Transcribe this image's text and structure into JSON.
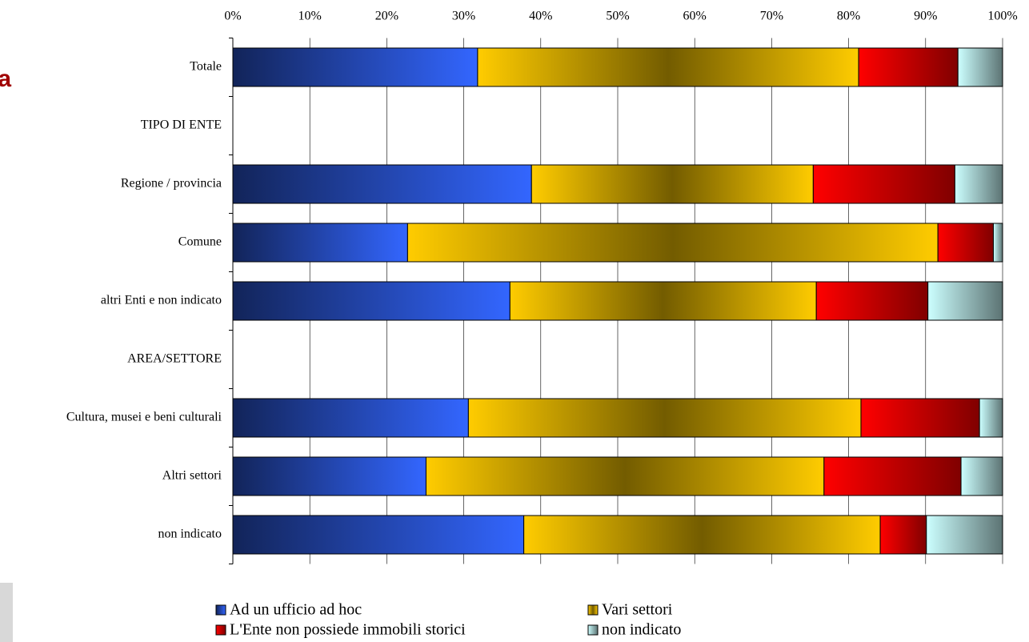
{
  "chart_data": {
    "type": "stacked-bar-horizontal",
    "title": "a",
    "categories": [
      "Totale",
      "TIPO DI ENTE",
      "Regione / provincia",
      "Comune",
      "altri Enti e non indicato",
      "AREA/SETTORE",
      "Cultura, musei e beni culturali",
      "Altri settori",
      "non indicato"
    ],
    "series": [
      {
        "name": "Ad un ufficio ad hoc",
        "color": "#3366ff",
        "values": [
          31.8,
          null,
          38.8,
          22.7,
          36.0,
          null,
          30.6,
          25.1,
          37.8
        ]
      },
      {
        "name": "Vari settori",
        "color": "#ffcc00",
        "values": [
          49.5,
          null,
          36.6,
          68.9,
          39.8,
          null,
          51.0,
          51.7,
          46.3
        ]
      },
      {
        "name": "L'Ente non possiede immobili storici",
        "color": "#ff0000",
        "values": [
          12.9,
          null,
          18.4,
          7.2,
          14.5,
          null,
          15.4,
          17.8,
          6.0
        ]
      },
      {
        "name": "non indicato",
        "color": "#ccffff",
        "values": [
          5.8,
          null,
          6.2,
          1.2,
          9.7,
          null,
          3.0,
          5.4,
          9.9
        ]
      }
    ],
    "xlim": [
      0,
      100
    ],
    "xticks": [
      {
        "value": 0,
        "label": "0%"
      },
      {
        "value": 10,
        "label": "10%"
      },
      {
        "value": 20,
        "label": "20%"
      },
      {
        "value": 30,
        "label": "30%"
      },
      {
        "value": 40,
        "label": "40%"
      },
      {
        "value": 50,
        "label": "50%"
      },
      {
        "value": 60,
        "label": "60%"
      },
      {
        "value": 70,
        "label": "70%"
      },
      {
        "value": 80,
        "label": "80%"
      },
      {
        "value": 90,
        "label": "90%"
      },
      {
        "value": 100,
        "label": "100%"
      }
    ],
    "grid": true
  }
}
